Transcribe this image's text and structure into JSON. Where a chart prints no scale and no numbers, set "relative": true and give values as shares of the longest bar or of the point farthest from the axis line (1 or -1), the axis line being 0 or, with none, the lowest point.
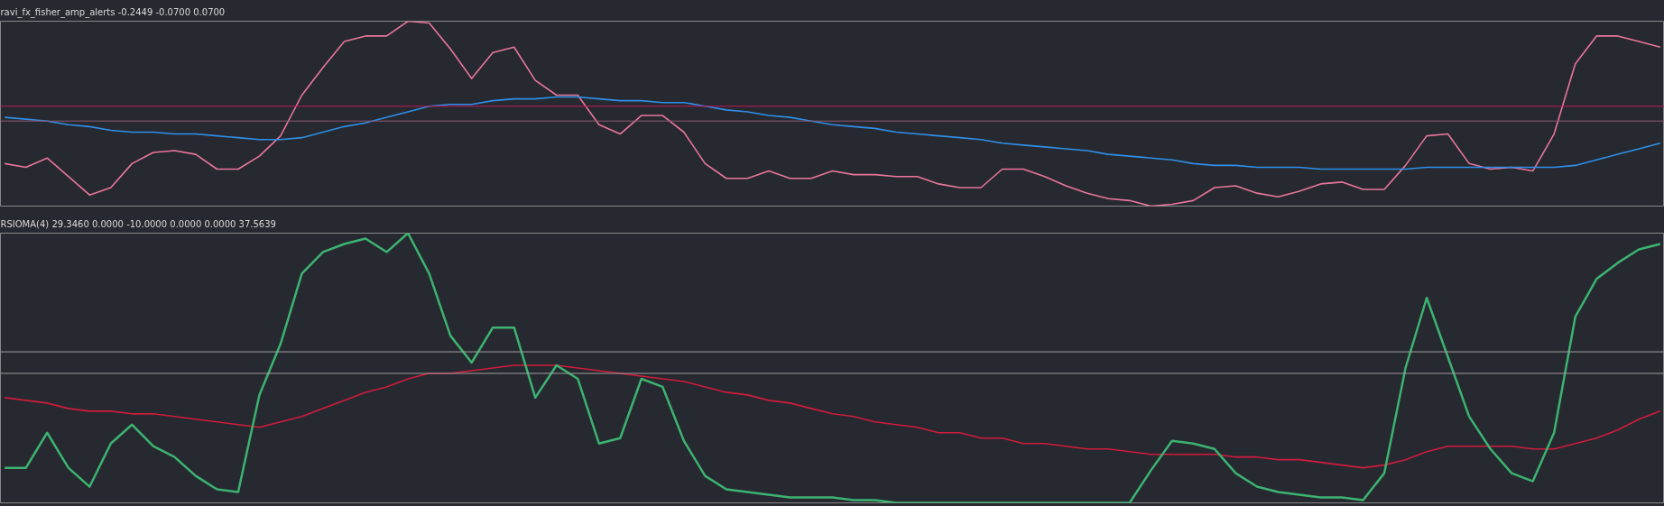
{
  "chart_data": [
    {
      "type": "line",
      "title": "ravi_fx_fisher_amp_alerts -0.2449 -0.0700 0.0700",
      "relative": true,
      "categories": [
        null,
        null,
        null,
        null,
        null,
        null,
        null,
        null,
        null,
        null,
        null,
        null,
        null,
        null,
        null,
        null,
        null,
        null,
        null,
        null,
        null,
        null,
        null,
        null,
        null,
        null,
        null,
        null,
        null,
        null,
        null,
        null,
        null,
        null,
        null,
        null,
        null,
        null,
        null,
        null,
        null,
        null,
        null,
        null,
        null,
        null,
        null,
        null,
        null,
        null,
        null,
        null,
        null,
        null,
        null,
        null,
        null,
        null,
        null,
        null,
        null,
        null,
        null,
        null,
        null,
        null,
        null,
        null,
        null,
        null,
        null,
        null,
        null,
        null,
        null,
        null,
        null,
        null,
        null
      ],
      "ref_lines": [
        {
          "axis": "y",
          "value": 0.54,
          "color": "#c2185b"
        },
        {
          "axis": "y",
          "value": 0.46,
          "color": "#8a5a70"
        }
      ],
      "series": [
        {
          "color": "#e8769b",
          "values": [
            0.23,
            0.21,
            0.26,
            0.16,
            0.06,
            0.1,
            0.23,
            0.29,
            0.3,
            0.28,
            0.2,
            0.2,
            0.27,
            0.38,
            0.6,
            0.75,
            0.89,
            0.92,
            0.92,
            1.0,
            0.99,
            0.85,
            0.69,
            0.83,
            0.86,
            0.68,
            0.6,
            0.6,
            0.44,
            0.39,
            0.49,
            0.49,
            0.4,
            0.23,
            0.15,
            0.15,
            0.19,
            0.15,
            0.15,
            0.19,
            0.17,
            0.17,
            0.16,
            0.16,
            0.12,
            0.1,
            0.1,
            0.2,
            0.2,
            0.16,
            0.11,
            0.07,
            0.04,
            0.03,
            0.0,
            0.01,
            0.03,
            0.1,
            0.11,
            0.07,
            0.05,
            0.08,
            0.12,
            0.13,
            0.09,
            0.09,
            0.22,
            0.38,
            0.39,
            0.23,
            0.2,
            0.21,
            0.19,
            0.39,
            0.77,
            0.92,
            0.92,
            0.89,
            0.86
          ]
        },
        {
          "color": "#2f8fe8",
          "values": [
            0.48,
            0.47,
            0.46,
            0.44,
            0.43,
            0.41,
            0.4,
            0.4,
            0.39,
            0.39,
            0.38,
            0.37,
            0.36,
            0.36,
            0.37,
            0.4,
            0.43,
            0.45,
            0.48,
            0.51,
            0.54,
            0.55,
            0.55,
            0.57,
            0.58,
            0.58,
            0.59,
            0.59,
            0.58,
            0.57,
            0.57,
            0.56,
            0.56,
            0.54,
            0.52,
            0.51,
            0.49,
            0.48,
            0.46,
            0.44,
            0.43,
            0.42,
            0.4,
            0.39,
            0.38,
            0.37,
            0.36,
            0.34,
            0.33,
            0.32,
            0.31,
            0.3,
            0.28,
            0.27,
            0.26,
            0.25,
            0.23,
            0.22,
            0.22,
            0.21,
            0.21,
            0.21,
            0.2,
            0.2,
            0.2,
            0.2,
            0.2,
            0.21,
            0.21,
            0.21,
            0.21,
            0.21,
            0.21,
            0.21,
            0.22,
            0.25,
            0.28,
            0.31,
            0.34
          ]
        }
      ]
    },
    {
      "type": "line",
      "title": "RSIOMA(4) 29.3460 0.0000 -10.0000 0.0000 0.0000 37.5639",
      "relative": true,
      "categories": [
        null,
        null,
        null,
        null,
        null,
        null,
        null,
        null,
        null,
        null,
        null,
        null,
        null,
        null,
        null,
        null,
        null,
        null,
        null,
        null,
        null,
        null,
        null,
        null,
        null,
        null,
        null,
        null,
        null,
        null,
        null,
        null,
        null,
        null,
        null,
        null,
        null,
        null,
        null,
        null,
        null,
        null,
        null,
        null,
        null,
        null,
        null,
        null,
        null,
        null,
        null,
        null,
        null,
        null,
        null,
        null,
        null,
        null,
        null,
        null,
        null,
        null,
        null,
        null,
        null,
        null,
        null,
        null,
        null,
        null,
        null,
        null,
        null,
        null,
        null,
        null,
        null,
        null,
        null
      ],
      "ref_lines": [
        {
          "axis": "y",
          "value": 0.56,
          "color": "#a0a0a0"
        },
        {
          "axis": "y",
          "value": 0.48,
          "color": "#a0a0a0"
        }
      ],
      "series": [
        {
          "color": "#d01c3c",
          "values": [
            0.39,
            0.38,
            0.37,
            0.35,
            0.34,
            0.34,
            0.33,
            0.33,
            0.32,
            0.31,
            0.3,
            0.29,
            0.28,
            0.3,
            0.32,
            0.35,
            0.38,
            0.41,
            0.43,
            0.46,
            0.48,
            0.48,
            0.49,
            0.5,
            0.51,
            0.51,
            0.51,
            0.5,
            0.49,
            0.48,
            0.47,
            0.46,
            0.45,
            0.43,
            0.41,
            0.4,
            0.38,
            0.37,
            0.35,
            0.33,
            0.32,
            0.3,
            0.29,
            0.28,
            0.26,
            0.26,
            0.24,
            0.24,
            0.22,
            0.22,
            0.21,
            0.2,
            0.2,
            0.19,
            0.18,
            0.18,
            0.18,
            0.18,
            0.17,
            0.17,
            0.16,
            0.16,
            0.15,
            0.14,
            0.13,
            0.14,
            0.16,
            0.19,
            0.21,
            0.21,
            0.21,
            0.21,
            0.2,
            0.2,
            0.22,
            0.24,
            0.27,
            0.31,
            0.34
          ]
        },
        {
          "color": "#3cb371",
          "values": [
            0.13,
            0.13,
            0.26,
            0.13,
            0.06,
            0.22,
            0.29,
            0.21,
            0.17,
            0.1,
            0.05,
            0.04,
            0.4,
            0.59,
            0.85,
            0.93,
            0.96,
            0.98,
            0.93,
            1.0,
            0.85,
            0.62,
            0.52,
            0.65,
            0.65,
            0.39,
            0.51,
            0.46,
            0.22,
            0.24,
            0.46,
            0.43,
            0.23,
            0.1,
            0.05,
            0.04,
            0.03,
            0.02,
            0.02,
            0.02,
            0.01,
            0.01,
            0.0,
            0.0,
            0.0,
            0.0,
            0.0,
            0.0,
            0.0,
            0.0,
            0.0,
            0.0,
            0.0,
            0.0,
            0.12,
            0.23,
            0.22,
            0.2,
            0.11,
            0.06,
            0.04,
            0.03,
            0.02,
            0.02,
            0.01,
            0.11,
            0.5,
            0.76,
            0.54,
            0.32,
            0.2,
            0.11,
            0.08,
            0.26,
            0.69,
            0.83,
            0.89,
            0.94,
            0.96
          ]
        }
      ]
    }
  ]
}
